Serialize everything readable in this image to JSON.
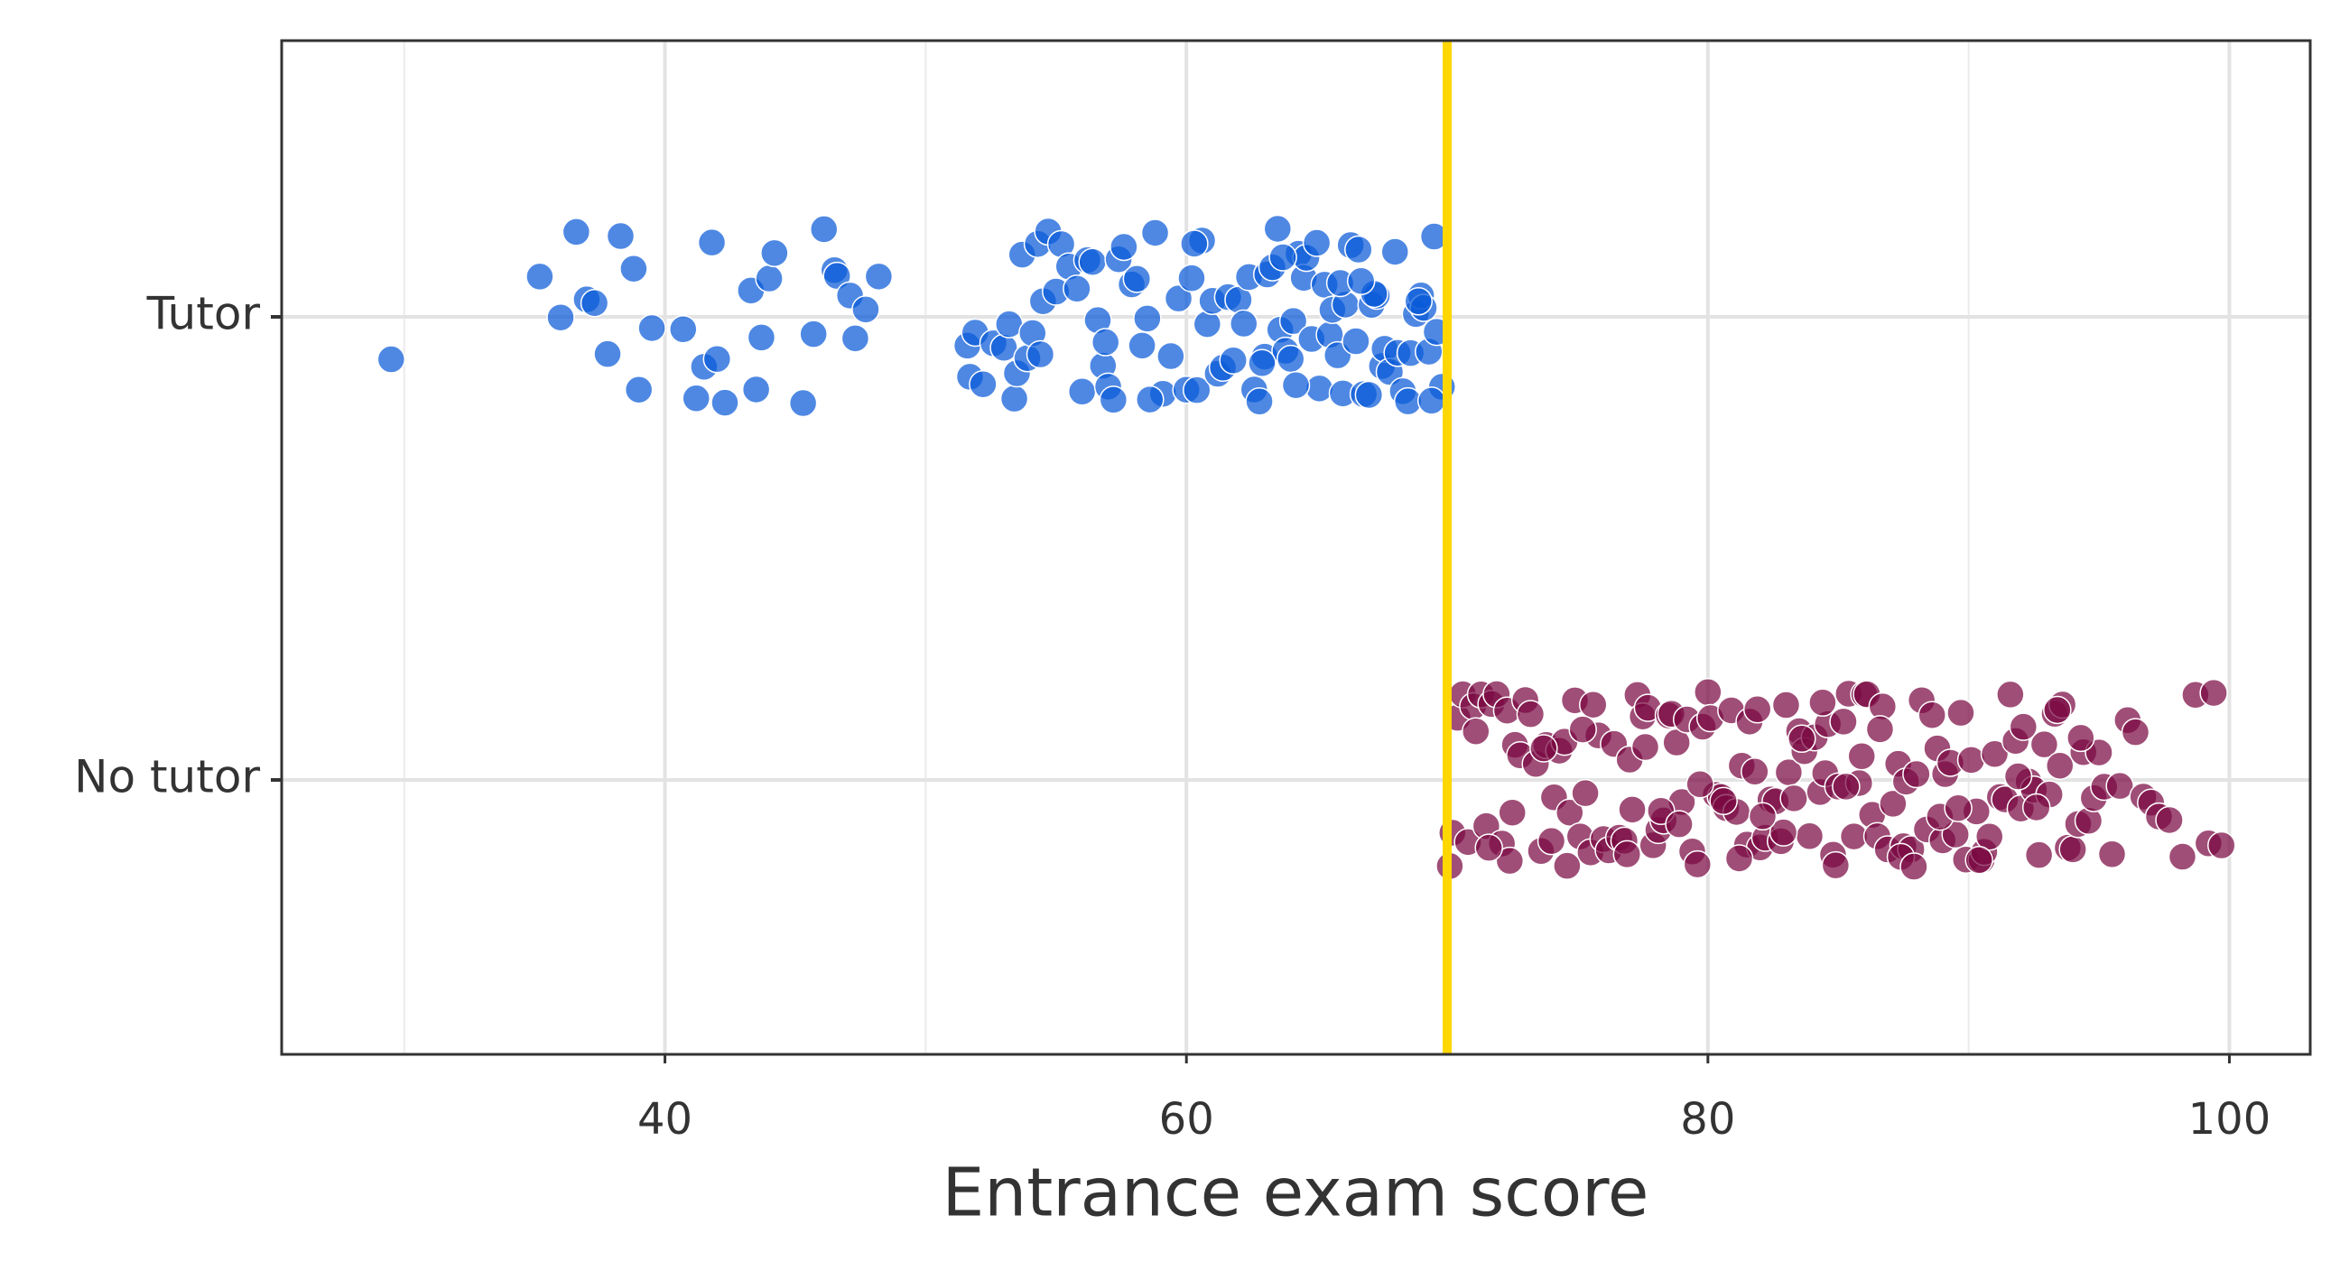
{
  "chart_data": {
    "type": "strip",
    "x_label": "Entrance exam score",
    "xlim": [
      25.3,
      103.1
    ],
    "xticks": [
      40,
      60,
      80,
      100
    ],
    "xminorticks": [
      30,
      50,
      70,
      90
    ],
    "grid": true,
    "threshold": {
      "value": 70,
      "color": "#FFD700"
    },
    "series": [
      {
        "name": "Tutor",
        "color": "#0a5ad8",
        "values": [
          29.5,
          35.2,
          36,
          36.6,
          37,
          37.3,
          37.8,
          38.3,
          38.8,
          39,
          39.5,
          40.7,
          41.2,
          41.5,
          41.8,
          42,
          42.3,
          43.3,
          43.5,
          43.7,
          44,
          44.2,
          45.3,
          45.7,
          46.1,
          46.5,
          46.6,
          47.1,
          47.3,
          47.7,
          48.2,
          51.6,
          51.7,
          51.9,
          52.2,
          52.6,
          53,
          53.2,
          53.4,
          53.5,
          53.7,
          53.9,
          54.1,
          54.3,
          54.5,
          54.7,
          55,
          55.2,
          55.5,
          55.8,
          56,
          56.2,
          56.4,
          56.6,
          56.8,
          57,
          57.2,
          57.4,
          57.6,
          57.9,
          58.1,
          58.3,
          58.5,
          58.8,
          59.1,
          59.4,
          59.7,
          60,
          60.2,
          60.4,
          60.6,
          60.8,
          61,
          61.2,
          61.4,
          61.6,
          61.8,
          62,
          62.2,
          62.4,
          62.6,
          62.8,
          63,
          63.1,
          63.3,
          63.5,
          63.6,
          63.8,
          64,
          64.1,
          64.3,
          64.5,
          64.6,
          64.8,
          65,
          65.1,
          65.3,
          65.5,
          65.6,
          65.8,
          66,
          66.1,
          66.3,
          66.5,
          66.6,
          66.8,
          67,
          67.1,
          67.3,
          67.5,
          67.6,
          67.8,
          68,
          68.1,
          68.3,
          68.5,
          68.6,
          68.8,
          69,
          69.1,
          69.3,
          69.5,
          69.6,
          69.8,
          64.2,
          62.9,
          60.3,
          67.2,
          68.9,
          65.9,
          63.7,
          58.6,
          56.9,
          54.4,
          66.7,
          69.4
        ]
      },
      {
        "name": "No tutor",
        "color": "#7a0a42",
        "values": [
          70.1,
          70.2,
          70.4,
          70.6,
          70.8,
          71,
          71.1,
          71.3,
          71.5,
          71.7,
          71.9,
          72.1,
          72.3,
          72.5,
          72.6,
          72.8,
          73,
          73.2,
          73.4,
          73.6,
          73.8,
          74,
          74.1,
          74.3,
          74.5,
          74.7,
          74.9,
          75.1,
          75.3,
          75.5,
          75.6,
          75.8,
          76,
          76.2,
          76.4,
          76.6,
          76.8,
          77,
          77.1,
          77.3,
          77.5,
          77.7,
          77.9,
          78.1,
          78.3,
          78.5,
          78.6,
          78.8,
          79,
          79.2,
          79.4,
          79.6,
          79.8,
          80,
          80.1,
          80.3,
          80.5,
          80.7,
          80.9,
          81.1,
          81.3,
          81.5,
          81.6,
          81.8,
          82,
          82.2,
          82.4,
          82.6,
          82.8,
          83,
          83.1,
          83.3,
          83.5,
          83.7,
          83.9,
          84.1,
          84.3,
          84.5,
          84.6,
          84.8,
          85,
          85.2,
          85.4,
          85.6,
          85.8,
          86,
          86.1,
          86.3,
          86.5,
          86.7,
          86.9,
          87.1,
          87.3,
          87.5,
          87.6,
          87.8,
          88,
          88.2,
          88.4,
          88.6,
          88.8,
          89,
          89.1,
          89.3,
          89.5,
          89.7,
          89.9,
          90.1,
          90.3,
          90.5,
          90.6,
          90.8,
          91,
          91.2,
          91.4,
          91.6,
          91.8,
          92,
          92.1,
          92.3,
          92.5,
          92.7,
          92.9,
          93.1,
          93.3,
          93.5,
          93.6,
          93.8,
          94,
          94.2,
          94.4,
          94.6,
          94.8,
          95,
          95.2,
          95.5,
          95.8,
          96.1,
          96.4,
          96.7,
          97,
          97.3,
          97.7,
          98.2,
          98.7,
          99.2,
          99.4,
          99.7,
          72.4,
          74.6,
          76.9,
          78.2,
          79.7,
          81.2,
          82.9,
          84.4,
          85.9,
          87.4,
          88.9,
          90.4,
          91.9,
          93.4,
          80.6,
          83.6,
          86.6,
          77.6,
          75.2,
          73.7,
          71.6,
          89.6,
          92.6,
          94.3,
          84.9,
          81.9,
          78.9,
          85.3,
          87.9,
          82.1
        ]
      }
    ]
  }
}
